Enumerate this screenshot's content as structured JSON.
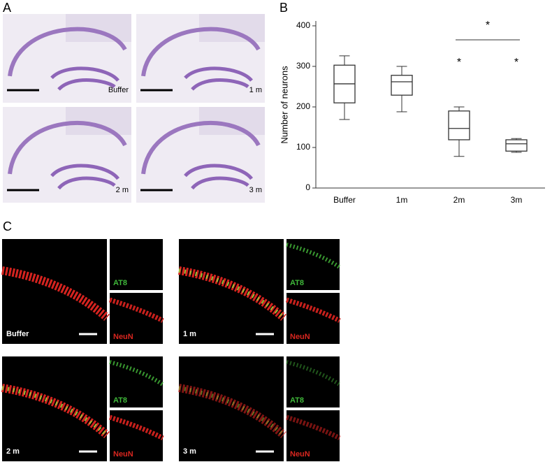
{
  "panel_a": {
    "label": "A",
    "images": [
      {
        "label": "Buffer"
      },
      {
        "label": "1 m"
      },
      {
        "label": "2 m"
      },
      {
        "label": "3 m"
      }
    ]
  },
  "chart_data": {
    "type": "box",
    "panel_label": "B",
    "ylabel": "Number of neurons",
    "categories": [
      "Buffer",
      "1m",
      "2m",
      "3m"
    ],
    "boxes": [
      {
        "min": 169,
        "q1": 210,
        "median": 257,
        "q3": 303,
        "max": 326
      },
      {
        "min": 188,
        "q1": 229,
        "median": 262,
        "q3": 278,
        "max": 300
      },
      {
        "min": 78,
        "q1": 119,
        "median": 147,
        "q3": 190,
        "max": 200
      },
      {
        "min": 88,
        "q1": 91,
        "median": 109,
        "q3": 119,
        "max": 122
      }
    ],
    "color": "#333333",
    "ylim": [
      0,
      412
    ],
    "yticks": [
      0,
      100,
      200,
      300,
      400
    ],
    "annotations": [
      "*",
      "*",
      "*"
    ]
  },
  "panel_c": {
    "label": "C",
    "groups": [
      {
        "label": "Buffer",
        "channels": [
          "AT8",
          "NeuN"
        ]
      },
      {
        "label": "1 m",
        "channels": [
          "AT8",
          "NeuN"
        ]
      },
      {
        "label": "2 m",
        "channels": [
          "AT8",
          "NeuN"
        ]
      },
      {
        "label": "3 m",
        "channels": [
          "AT8",
          "NeuN"
        ]
      }
    ]
  }
}
